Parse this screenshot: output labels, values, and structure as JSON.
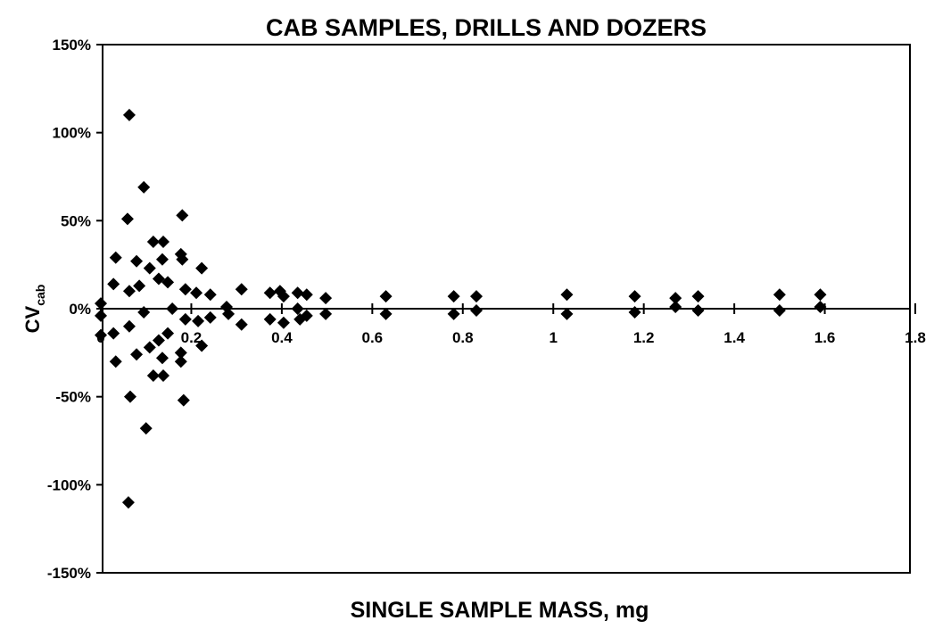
{
  "chart_data": {
    "type": "scatter",
    "title": "CAB SAMPLES, DRILLS AND DOZERS",
    "x_label": "SINGLE SAMPLE MASS, mg",
    "y_label": "CV",
    "y_label_sub": "cab",
    "color": "#000000",
    "xlim": [
      0,
      1.8
    ],
    "xticks": [
      0,
      0.2,
      0.4,
      0.6,
      0.8,
      1,
      1.2,
      1.4,
      1.6,
      1.8
    ],
    "ylim": [
      -150,
      150
    ],
    "yticks": [
      {
        "value": -150,
        "label": "-150%"
      },
      {
        "value": -100,
        "label": "-100%"
      },
      {
        "value": -50,
        "label": "-50%"
      },
      {
        "value": 0,
        "label": "0%"
      },
      {
        "value": 50,
        "label": "50%"
      },
      {
        "value": 100,
        "label": "100%"
      },
      {
        "value": 150,
        "label": "150%"
      }
    ],
    "x": [
      0,
      0,
      0,
      0.063,
      0.061,
      0.095,
      0.1,
      0.059,
      0.065,
      0.033,
      0.033,
      0.028,
      0.028,
      0.079,
      0.079,
      0.063,
      0.063,
      0.116,
      0.138,
      0.116,
      0.138,
      0.108,
      0.108,
      0.128,
      0.128,
      0.136,
      0.136,
      0.148,
      0.148,
      0.18,
      0.183,
      0.177,
      0.177,
      0.18,
      0.177,
      0.187,
      0.187,
      0.223,
      0.223,
      0.211,
      0.215,
      0.242,
      0.242,
      0.278,
      0.282,
      0.311,
      0.311,
      0.374,
      0.374,
      0.396,
      0.404,
      0.404,
      0.435,
      0.435,
      0.44,
      0.455,
      0.455,
      0.497,
      0.497,
      0.63,
      0.63,
      0.78,
      0.78,
      0.83,
      0.83,
      1.03,
      1.03,
      1.18,
      1.18,
      1.27,
      1.27,
      1.32,
      1.32,
      1.5,
      1.5,
      1.59,
      1.59,
      0.085,
      0.095,
      0.158
    ],
    "y": [
      3,
      -4,
      -15,
      110,
      -110,
      69,
      -68,
      51,
      -50,
      29,
      -30,
      14,
      -14,
      27,
      -26,
      10,
      -10,
      38,
      38,
      -38,
      -38,
      23,
      -22,
      17,
      -18,
      28,
      -28,
      15,
      -14,
      53,
      -52,
      31,
      -30,
      28,
      -25,
      11,
      -6,
      23,
      -21,
      9,
      -7,
      8,
      -5,
      1,
      -3,
      11,
      -9,
      9,
      -6,
      10,
      7,
      -8,
      9,
      0,
      -6,
      8,
      -4,
      6,
      -3,
      7,
      -3,
      7,
      -3,
      7,
      -1,
      8,
      -3,
      7,
      -2,
      6,
      1,
      7,
      -1,
      8,
      -1,
      8,
      1,
      13,
      -2,
      0
    ]
  }
}
